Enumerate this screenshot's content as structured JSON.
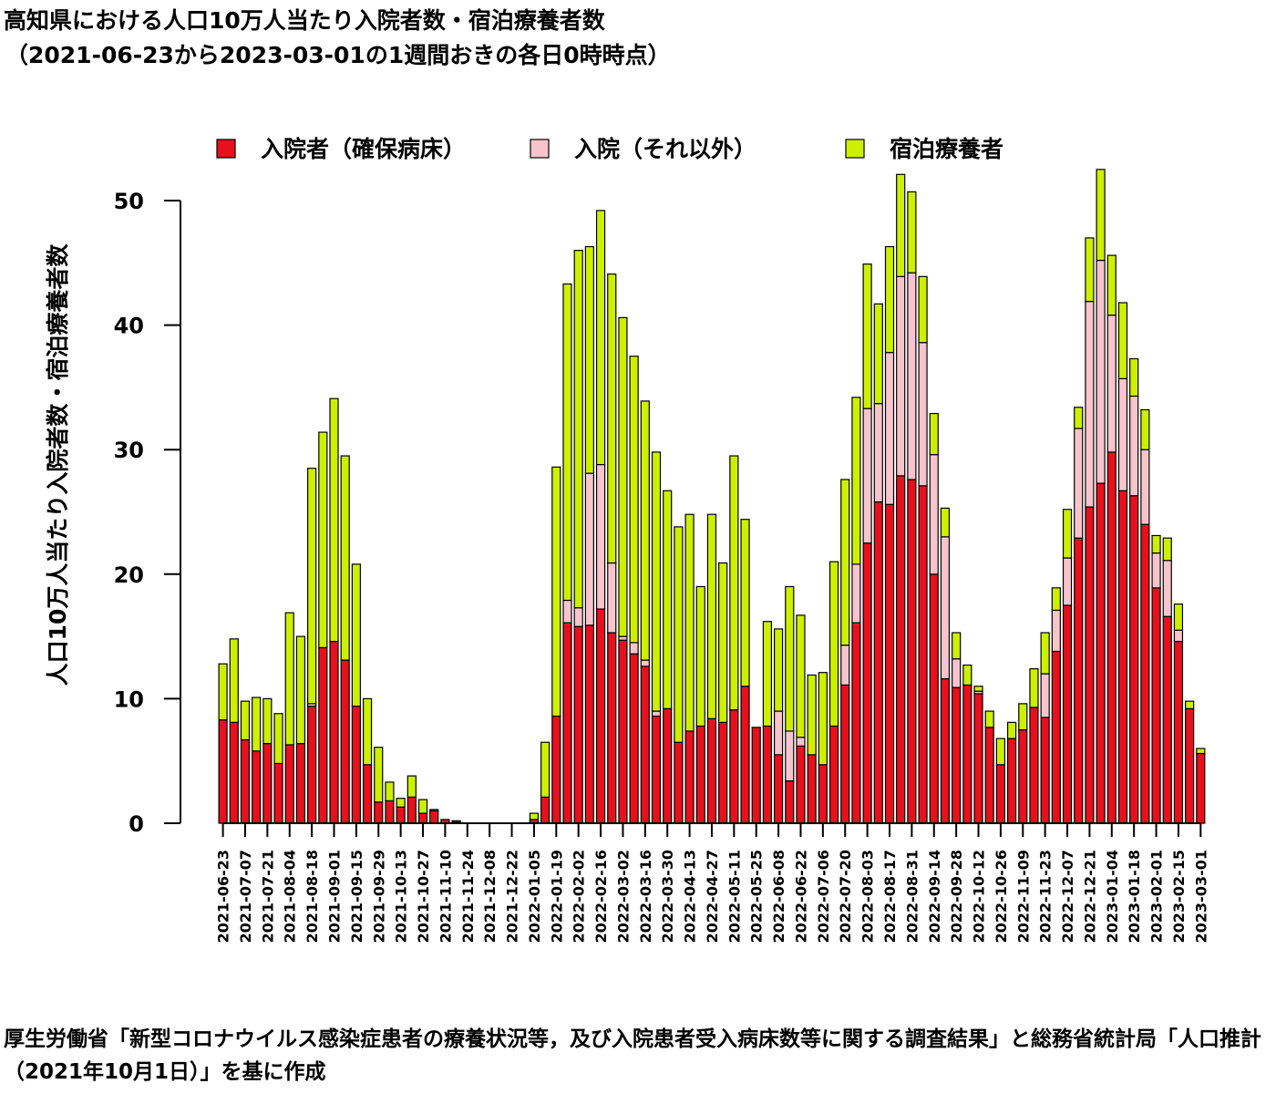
{
  "title": "高知県における人口10万人当たり入院者数・宿泊療養者数",
  "subtitle": "（2021-06-23から2023-03-01の1週間おきの各日0時時点）",
  "source_note": "厚生労働省「新型コロナウイルス感染症患者の療養状況等，及び入院患者受入病床数等に関する調査結果」と総務省統計局「人口推計（2021年10月1日）」を基に作成",
  "chart_data": {
    "type": "bar",
    "stacked": true,
    "ylabel": "人口10万人当たり入院者数・宿泊療養者数",
    "xlabel": "",
    "ylim": [
      0,
      52
    ],
    "yticks": [
      0,
      10,
      20,
      30,
      40,
      50
    ],
    "legend_position": "top",
    "dates": [
      "2021-06-23",
      "2021-06-30",
      "2021-07-07",
      "2021-07-14",
      "2021-07-21",
      "2021-07-28",
      "2021-08-04",
      "2021-08-11",
      "2021-08-18",
      "2021-08-25",
      "2021-09-01",
      "2021-09-08",
      "2021-09-15",
      "2021-09-22",
      "2021-09-29",
      "2021-10-06",
      "2021-10-13",
      "2021-10-20",
      "2021-10-27",
      "2021-11-03",
      "2021-11-10",
      "2021-11-17",
      "2021-11-24",
      "2021-12-01",
      "2021-12-08",
      "2021-12-15",
      "2021-12-22",
      "2021-12-29",
      "2022-01-05",
      "2022-01-12",
      "2022-01-19",
      "2022-01-26",
      "2022-02-02",
      "2022-02-09",
      "2022-02-16",
      "2022-02-23",
      "2022-03-02",
      "2022-03-09",
      "2022-03-16",
      "2022-03-23",
      "2022-03-30",
      "2022-04-06",
      "2022-04-13",
      "2022-04-20",
      "2022-04-27",
      "2022-05-04",
      "2022-05-11",
      "2022-05-18",
      "2022-05-25",
      "2022-06-01",
      "2022-06-08",
      "2022-06-15",
      "2022-06-22",
      "2022-06-29",
      "2022-07-06",
      "2022-07-13",
      "2022-07-20",
      "2022-07-27",
      "2022-08-03",
      "2022-08-10",
      "2022-08-17",
      "2022-08-24",
      "2022-08-31",
      "2022-09-07",
      "2022-09-14",
      "2022-09-21",
      "2022-09-28",
      "2022-10-05",
      "2022-10-12",
      "2022-10-19",
      "2022-10-26",
      "2022-11-02",
      "2022-11-09",
      "2022-11-16",
      "2022-11-23",
      "2022-11-30",
      "2022-12-07",
      "2022-12-14",
      "2022-12-21",
      "2022-12-28",
      "2023-01-04",
      "2023-01-11",
      "2023-01-18",
      "2023-01-25",
      "2023-02-01",
      "2023-02-08",
      "2023-02-15",
      "2023-02-22",
      "2023-03-01"
    ],
    "tick_labels": [
      "2021-06-23",
      "2021-07-07",
      "2021-07-21",
      "2021-08-04",
      "2021-08-18",
      "2021-09-01",
      "2021-09-15",
      "2021-09-29",
      "2021-10-13",
      "2021-10-27",
      "2021-11-10",
      "2021-11-24",
      "2021-12-08",
      "2021-12-22",
      "2022-01-05",
      "2022-01-19",
      "2022-02-02",
      "2022-02-16",
      "2022-03-02",
      "2022-03-16",
      "2022-03-30",
      "2022-04-13",
      "2022-04-27",
      "2022-05-11",
      "2022-05-25",
      "2022-06-08",
      "2022-06-22",
      "2022-07-06",
      "2022-07-20",
      "2022-08-03",
      "2022-08-17",
      "2022-08-31",
      "2022-09-14",
      "2022-09-28",
      "2022-10-12",
      "2022-10-26",
      "2022-11-09",
      "2022-11-23",
      "2022-12-07",
      "2022-12-21",
      "2023-01-04",
      "2023-01-18",
      "2023-02-01",
      "2023-02-15",
      "2023-03-01"
    ],
    "series": [
      {
        "name": "入院者（確保病床）",
        "color": "#e8101c",
        "values": [
          8.3,
          8.1,
          6.7,
          5.8,
          6.4,
          4.8,
          6.3,
          6.4,
          9.4,
          14.1,
          14.6,
          13.1,
          9.4,
          4.7,
          1.7,
          1.8,
          1.3,
          2.1,
          0.8,
          1.0,
          0.3,
          0.1,
          0,
          0,
          0,
          0,
          0,
          0,
          0.3,
          2.1,
          8.6,
          16.1,
          15.8,
          15.9,
          17.2,
          15.3,
          14.7,
          13.6,
          12.6,
          8.6,
          9.2,
          6.5,
          7.4,
          7.8,
          8.4,
          8.1,
          9.1,
          11.0,
          7.7,
          7.8,
          5.5,
          3.4,
          6.2,
          5.5,
          4.7,
          7.8,
          11.1,
          16.1,
          22.5,
          25.8,
          25.6,
          27.9,
          27.6,
          27.1,
          20.0,
          11.6,
          10.9,
          11.1,
          10.4,
          7.7,
          4.7,
          6.8,
          7.5,
          9.3,
          8.5,
          13.8,
          17.5,
          22.9,
          25.4,
          27.3,
          29.8,
          26.7,
          26.3,
          24.0,
          18.9,
          16.6,
          14.6,
          9.2,
          5.6
        ]
      },
      {
        "name": "入院（それ以外）",
        "color": "#f8c4cc",
        "values": [
          0,
          0,
          0,
          0,
          0,
          0,
          0,
          0,
          0.2,
          0,
          0,
          0,
          0,
          0,
          0,
          0,
          0,
          0,
          0,
          0,
          0,
          0,
          0,
          0,
          0,
          0,
          0,
          0,
          0,
          0,
          0,
          1.8,
          1.5,
          12.2,
          11.6,
          5.6,
          0.3,
          0.9,
          0.5,
          0.4,
          0,
          0,
          0,
          0,
          0,
          0,
          0,
          0,
          0,
          0,
          3.5,
          4.0,
          0.7,
          0,
          0,
          0,
          3.2,
          4.7,
          10.8,
          7.9,
          12.2,
          16.0,
          16.6,
          11.5,
          9.6,
          11.4,
          2.3,
          0,
          0.2,
          0,
          0,
          0,
          0,
          0,
          3.5,
          3.3,
          3.8,
          8.8,
          16.5,
          17.9,
          11.0,
          9.0,
          8.0,
          6.0,
          2.8,
          4.5,
          0.9,
          0,
          0
        ]
      },
      {
        "name": "宿泊療養者",
        "color": "#ccf000",
        "values": [
          4.5,
          6.7,
          3.1,
          4.3,
          3.6,
          4.0,
          10.6,
          8.6,
          18.9,
          17.3,
          19.5,
          16.4,
          11.4,
          5.3,
          4.4,
          1.5,
          0.7,
          1.7,
          1.1,
          0.1,
          0,
          0.1,
          0,
          0,
          0,
          0,
          0,
          0,
          0.5,
          4.4,
          20.0,
          25.4,
          28.7,
          18.2,
          20.4,
          23.2,
          25.6,
          23.0,
          20.8,
          20.8,
          17.5,
          17.3,
          17.4,
          11.2,
          16.4,
          12.8,
          20.4,
          13.4,
          0,
          8.4,
          6.6,
          11.6,
          9.8,
          6.4,
          7.4,
          13.2,
          13.3,
          13.4,
          11.6,
          8.0,
          8.5,
          8.2,
          6.5,
          5.3,
          3.3,
          2.3,
          2.1,
          1.6,
          0.4,
          1.3,
          2.1,
          1.3,
          2.1,
          3.1,
          3.3,
          1.8,
          3.9,
          1.7,
          5.1,
          7.3,
          4.8,
          6.1,
          3.0,
          3.2,
          1.4,
          1.8,
          2.1,
          0.6,
          0.4
        ]
      }
    ]
  }
}
